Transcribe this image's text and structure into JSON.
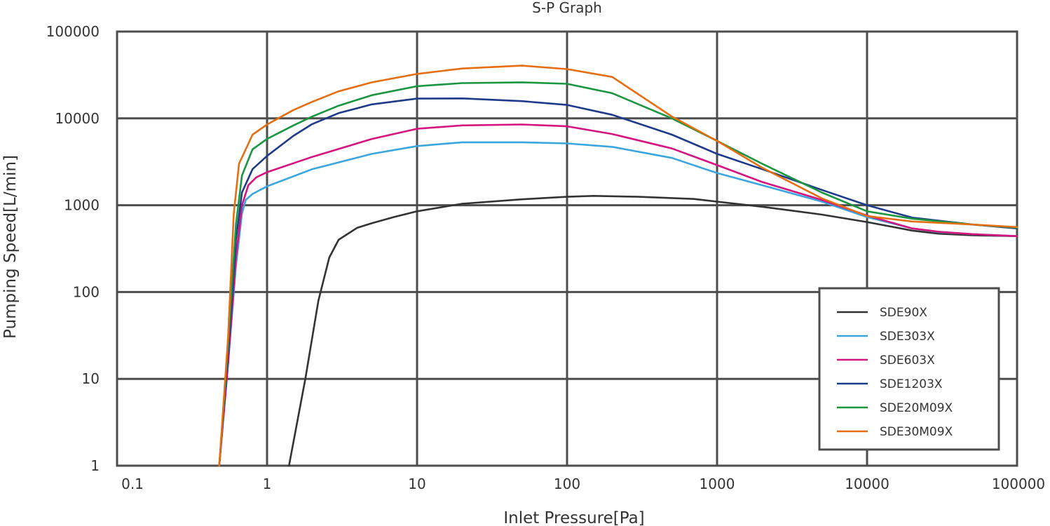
{
  "chart_data": {
    "type": "line",
    "title": "S-P Graph",
    "xlabel": "Inlet Pressure[Pa]",
    "ylabel": "Pumping Speed[L/min]",
    "xscale": "log",
    "yscale": "log",
    "xlim": [
      0.1,
      100000
    ],
    "ylim": [
      1,
      100000
    ],
    "x_ticks": [
      0.1,
      1,
      10,
      100,
      1000,
      10000,
      100000
    ],
    "x_tick_labels": [
      "0.1",
      "1",
      "10",
      "100",
      "1000",
      "10000",
      "100000"
    ],
    "y_ticks": [
      1,
      10,
      100,
      1000,
      10000,
      100000
    ],
    "y_tick_labels": [
      "1",
      "10",
      "100",
      "1000",
      "10000",
      "100000"
    ],
    "grid": true,
    "legend_position": "bottom-right",
    "series": [
      {
        "name": "SDE90X",
        "color": "#333333",
        "x": [
          1.4,
          1.8,
          2.2,
          2.6,
          3,
          4,
          5,
          7,
          10,
          20,
          50,
          100,
          150,
          300,
          700,
          1000,
          2000,
          5000,
          10000,
          20000,
          30000,
          50000,
          100000
        ],
        "y": [
          1,
          10,
          80,
          250,
          400,
          550,
          620,
          730,
          850,
          1040,
          1170,
          1250,
          1280,
          1250,
          1180,
          1100,
          960,
          780,
          640,
          510,
          470,
          450,
          440
        ]
      },
      {
        "name": "SDE303X",
        "color": "#3aa6e0",
        "x": [
          0.48,
          0.55,
          0.62,
          0.68,
          0.72,
          0.8,
          1,
          2,
          5,
          10,
          20,
          50,
          100,
          200,
          500,
          1000,
          2000,
          5000,
          10000,
          20000,
          30000,
          50000,
          100000
        ],
        "y": [
          1,
          15,
          200,
          800,
          1150,
          1350,
          1650,
          2600,
          3900,
          4800,
          5300,
          5300,
          5150,
          4700,
          3500,
          2350,
          1700,
          1100,
          730,
          540,
          490,
          465,
          440
        ]
      },
      {
        "name": "SDE603X",
        "color": "#d6137f",
        "x": [
          0.48,
          0.55,
          0.62,
          0.68,
          0.75,
          0.85,
          1,
          2,
          5,
          10,
          20,
          50,
          100,
          200,
          500,
          1000,
          2000,
          5000,
          10000,
          20000,
          30000,
          50000,
          100000
        ],
        "y": [
          1,
          15,
          250,
          1000,
          1700,
          2100,
          2400,
          3600,
          5800,
          7600,
          8300,
          8500,
          8100,
          6600,
          4500,
          2900,
          1850,
          1150,
          760,
          540,
          495,
          465,
          440
        ]
      },
      {
        "name": "SDE1203X",
        "color": "#1e3a8a",
        "x": [
          0.48,
          0.55,
          0.62,
          0.68,
          0.8,
          1,
          1.5,
          2,
          3,
          5,
          10,
          20,
          50,
          100,
          200,
          500,
          1000,
          2000,
          5000,
          10000,
          20000,
          50000,
          100000
        ],
        "y": [
          1,
          20,
          400,
          1400,
          2600,
          3700,
          6300,
          8600,
          11500,
          14500,
          16900,
          17000,
          15800,
          14300,
          11000,
          6500,
          3900,
          2600,
          1500,
          1000,
          720,
          600,
          540
        ]
      },
      {
        "name": "SDE20M09X",
        "color": "#1a9641",
        "x": [
          0.48,
          0.55,
          0.62,
          0.68,
          0.8,
          1,
          1.5,
          2,
          3,
          5,
          10,
          20,
          50,
          100,
          200,
          500,
          1000,
          2000,
          5000,
          10000,
          20000,
          50000,
          100000
        ],
        "y": [
          1,
          25,
          600,
          2200,
          4400,
          5800,
          8300,
          10500,
          14000,
          18500,
          23500,
          25500,
          26000,
          25000,
          19500,
          10000,
          5500,
          3000,
          1400,
          850,
          700,
          600,
          550
        ]
      },
      {
        "name": "SDE30M09X",
        "color": "#e56e12",
        "x": [
          0.48,
          0.55,
          0.6,
          0.65,
          0.8,
          1,
          1.5,
          2,
          3,
          5,
          10,
          20,
          50,
          100,
          200,
          500,
          1000,
          2000,
          5000,
          10000,
          20000,
          50000,
          100000
        ],
        "y": [
          1,
          30,
          800,
          3000,
          6500,
          8500,
          12500,
          15500,
          20500,
          26000,
          32500,
          37500,
          40500,
          37000,
          30000,
          10500,
          5500,
          2700,
          1200,
          750,
          650,
          600,
          560
        ]
      }
    ]
  }
}
